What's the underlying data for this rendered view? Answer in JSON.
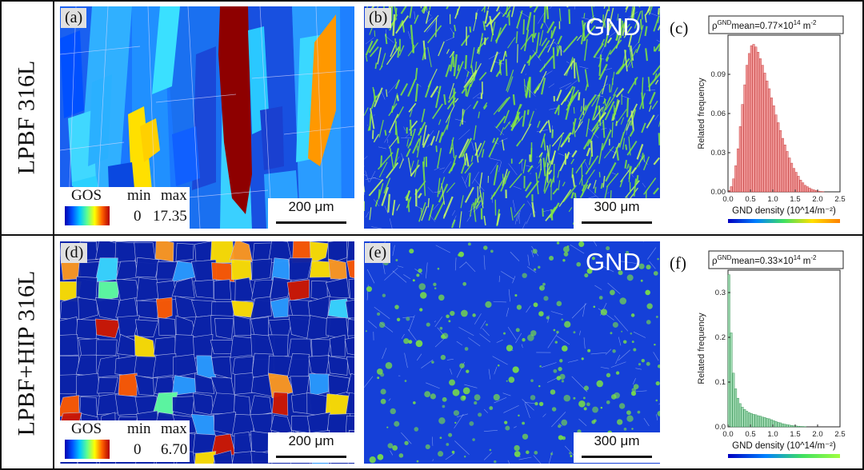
{
  "rows": [
    {
      "label": "LPBF 316L"
    },
    {
      "label": "LPBF+HIP 316L"
    }
  ],
  "panels": {
    "a": {
      "label": "(a)",
      "scalebar": "200 μm"
    },
    "b": {
      "label": "(b)",
      "title": "GND",
      "scalebar": "300 μm"
    },
    "c": {
      "label": "(c)"
    },
    "d": {
      "label": "(d)",
      "scalebar": "200 μm"
    },
    "e": {
      "label": "(e)",
      "title": "GND",
      "scalebar": "300 μm"
    },
    "f": {
      "label": "(f)"
    }
  },
  "gos_legend_top": {
    "title": "GOS",
    "min_label": "min",
    "max_label": "max",
    "min": "0",
    "max": "17.35"
  },
  "gos_legend_bottom": {
    "title": "GOS",
    "min_label": "min",
    "max_label": "max",
    "min": "0",
    "max": "6.70"
  },
  "colors": {
    "hist_c_fill": "#f19a9a",
    "hist_c_stroke": "#c03030",
    "hist_f_fill": "#9ed9b0",
    "hist_f_stroke": "#2a8a4a",
    "gnd_map_bg": "#1540d8",
    "gnd_map_green": "#7fe640"
  },
  "chart_data": [
    {
      "type": "bar",
      "panel": "c",
      "title": "ρGNDmean=0.77×10¹⁴ m⁻²",
      "title_parts": {
        "rho": "ρ",
        "sup": "GND",
        "main": "mean=0.77×10",
        "exp": "14",
        "unit": " m",
        "unit_exp": "-2"
      },
      "xlabel": "GND density (10^14/m⁻²)",
      "ylabel": "Related frequency",
      "xlim": [
        0,
        2.5
      ],
      "ylim": [
        0,
        0.12
      ],
      "xticks": [
        "0.0",
        "0.5",
        "1.0",
        "1.5",
        "2.0",
        "2.5"
      ],
      "yticks": [
        "0.00",
        "0.03",
        "0.06",
        "0.09"
      ],
      "bin_width": 0.05,
      "x_start": 0.0,
      "values": [
        0.001,
        0.004,
        0.01,
        0.02,
        0.033,
        0.05,
        0.067,
        0.082,
        0.097,
        0.106,
        0.112,
        0.113,
        0.111,
        0.107,
        0.102,
        0.097,
        0.091,
        0.085,
        0.079,
        0.072,
        0.066,
        0.059,
        0.053,
        0.047,
        0.041,
        0.036,
        0.031,
        0.026,
        0.022,
        0.018,
        0.015,
        0.012,
        0.009,
        0.007,
        0.005,
        0.004,
        0.003,
        0.002,
        0.0015,
        0.001,
        0.0006,
        0.0003,
        0.0002
      ]
    },
    {
      "type": "bar",
      "panel": "f",
      "title": "ρGNDmean=0.33×10¹⁴ m⁻²",
      "title_parts": {
        "rho": "ρ",
        "sup": "GND",
        "main": "mean=0.33×10",
        "exp": "14",
        "unit": " m",
        "unit_exp": "-2"
      },
      "xlabel": "GND density (10^14/m⁻²)",
      "ylabel": "Related frequency",
      "xlim": [
        0,
        2.5
      ],
      "ylim": [
        0,
        0.35
      ],
      "xticks": [
        "0.0",
        "0.5",
        "1.0",
        "1.5",
        "2.0",
        "2.5"
      ],
      "yticks": [
        "0.0",
        "0.1",
        "0.2",
        "0.3"
      ],
      "bin_width": 0.05,
      "x_start": 0.0,
      "values": [
        0.34,
        0.21,
        0.12,
        0.085,
        0.064,
        0.052,
        0.044,
        0.039,
        0.035,
        0.032,
        0.03,
        0.028,
        0.027,
        0.025,
        0.024,
        0.022,
        0.021,
        0.019,
        0.018,
        0.016,
        0.014,
        0.012,
        0.01,
        0.009,
        0.007,
        0.006,
        0.005,
        0.004,
        0.003,
        0.0025,
        0.002,
        0.0015,
        0.001,
        0.0008,
        0.0005
      ]
    }
  ]
}
